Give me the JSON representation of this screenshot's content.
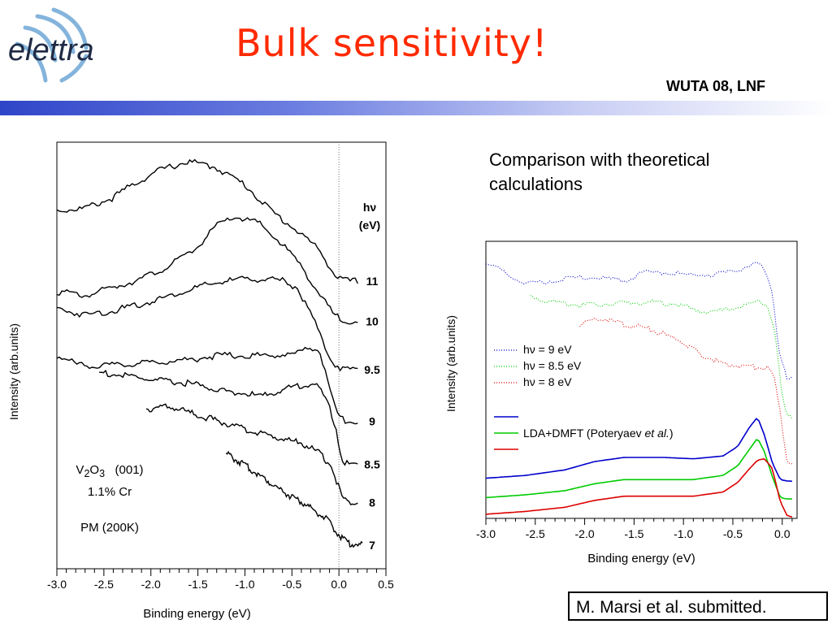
{
  "header": {
    "logo_text": "elettra",
    "title": "Bulk sensitivity!",
    "conference": "WUTA 08, LNF"
  },
  "subtitle": "Comparison with theoretical calculations",
  "citation": "M. Marsi et al. submitted.",
  "sample": {
    "formula_base": "V",
    "formula_sub1": "2",
    "formula_mid": "O",
    "formula_sub2": "3",
    "orientation": "(001)",
    "doping": "1.1% Cr",
    "phase": "PM  (200K)"
  },
  "colors": {
    "title": "#ff2a00",
    "band_start": "#2f45c8",
    "blue": "#0000cc",
    "green": "#00cc00",
    "red": "#dd0000"
  },
  "chart_data": [
    {
      "type": "line",
      "xlabel": "Binding energy (eV)",
      "ylabel": "Intensity (arb.units)",
      "xlim": [
        -3.0,
        0.5
      ],
      "x_ticks": [
        "-3.0",
        "-2.5",
        "-2.0",
        "-1.5",
        "-1.0",
        "-0.5",
        "0.0",
        "0.5"
      ],
      "vertical_reference": 0.0,
      "legend_title_line1": "hν",
      "legend_title_line2": "(eV)",
      "series": [
        {
          "name": "11",
          "start": -3.0,
          "points": [
            [
              -3.0,
              0.84
            ],
            [
              -2.7,
              0.845
            ],
            [
              -2.4,
              0.87
            ],
            [
              -2.2,
              0.9
            ],
            [
              -1.9,
              0.935
            ],
            [
              -1.6,
              0.955
            ],
            [
              -1.3,
              0.94
            ],
            [
              -1.0,
              0.9
            ],
            [
              -0.7,
              0.835
            ],
            [
              -0.4,
              0.785
            ],
            [
              -0.2,
              0.745
            ],
            [
              -0.05,
              0.69
            ],
            [
              0.05,
              0.675
            ],
            [
              0.2,
              0.674
            ]
          ]
        },
        {
          "name": "10",
          "start": -3.0,
          "points": [
            [
              -3.0,
              0.65
            ],
            [
              -2.7,
              0.64
            ],
            [
              -2.4,
              0.66
            ],
            [
              -2.1,
              0.68
            ],
            [
              -1.8,
              0.71
            ],
            [
              -1.5,
              0.755
            ],
            [
              -1.3,
              0.805
            ],
            [
              -1.1,
              0.825
            ],
            [
              -0.85,
              0.81
            ],
            [
              -0.6,
              0.76
            ],
            [
              -0.4,
              0.71
            ],
            [
              -0.2,
              0.64
            ],
            [
              -0.05,
              0.595
            ],
            [
              0.05,
              0.582
            ],
            [
              0.2,
              0.58
            ]
          ]
        },
        {
          "name": "9.5",
          "start": -3.0,
          "points": [
            [
              -3.0,
              0.61
            ],
            [
              -2.7,
              0.595
            ],
            [
              -2.4,
              0.605
            ],
            [
              -2.1,
              0.62
            ],
            [
              -1.8,
              0.64
            ],
            [
              -1.5,
              0.66
            ],
            [
              -1.2,
              0.675
            ],
            [
              -0.9,
              0.68
            ],
            [
              -0.6,
              0.675
            ],
            [
              -0.45,
              0.66
            ],
            [
              -0.3,
              0.6
            ],
            [
              -0.15,
              0.52
            ],
            [
              -0.05,
              0.48
            ],
            [
              0.05,
              0.468
            ],
            [
              0.2,
              0.467
            ]
          ]
        },
        {
          "name": "9",
          "start": -3.0,
          "points": [
            [
              -3.0,
              0.5
            ],
            [
              -2.8,
              0.48
            ],
            [
              -2.5,
              0.475
            ],
            [
              -2.2,
              0.48
            ],
            [
              -1.9,
              0.485
            ],
            [
              -1.6,
              0.49
            ],
            [
              -1.3,
              0.5
            ],
            [
              -1.0,
              0.5
            ],
            [
              -0.7,
              0.5
            ],
            [
              -0.45,
              0.505
            ],
            [
              -0.3,
              0.52
            ],
            [
              -0.2,
              0.51
            ],
            [
              -0.1,
              0.42
            ],
            [
              -0.02,
              0.36
            ],
            [
              0.05,
              0.348
            ],
            [
              0.2,
              0.346
            ]
          ]
        },
        {
          "name": "8.5",
          "start": -2.55,
          "points": [
            [
              -2.55,
              0.46
            ],
            [
              -2.2,
              0.45
            ],
            [
              -1.9,
              0.44
            ],
            [
              -1.6,
              0.435
            ],
            [
              -1.3,
              0.42
            ],
            [
              -1.0,
              0.41
            ],
            [
              -0.8,
              0.405
            ],
            [
              -0.6,
              0.42
            ],
            [
              -0.4,
              0.43
            ],
            [
              -0.25,
              0.435
            ],
            [
              -0.12,
              0.39
            ],
            [
              -0.03,
              0.33
            ],
            [
              0.03,
              0.255
            ],
            [
              0.1,
              0.245
            ],
            [
              0.2,
              0.245
            ]
          ]
        },
        {
          "name": "8",
          "start": -2.05,
          "points": [
            [
              -2.05,
              0.375
            ],
            [
              -1.8,
              0.38
            ],
            [
              -1.5,
              0.36
            ],
            [
              -1.2,
              0.34
            ],
            [
              -0.9,
              0.32
            ],
            [
              -0.6,
              0.305
            ],
            [
              -0.4,
              0.295
            ],
            [
              -0.2,
              0.27
            ],
            [
              -0.08,
              0.24
            ],
            [
              0.0,
              0.19
            ],
            [
              0.05,
              0.16
            ],
            [
              0.2,
              0.155
            ]
          ]
        },
        {
          "name": "7",
          "start": -1.2,
          "points": [
            [
              -1.2,
              0.27
            ],
            [
              -0.95,
              0.235
            ],
            [
              -0.75,
              0.205
            ],
            [
              -0.55,
              0.175
            ],
            [
              -0.35,
              0.15
            ],
            [
              -0.15,
              0.12
            ],
            [
              0.0,
              0.08
            ],
            [
              0.1,
              0.06
            ],
            [
              0.25,
              0.055
            ]
          ]
        }
      ]
    },
    {
      "type": "line",
      "xlabel": "Binding energy (eV)",
      "ylabel": "Intensity (arb.units)",
      "xlim": [
        -3.0,
        0.15
      ],
      "x_ticks": [
        "-3.0",
        "-2.5",
        "-2.0",
        "-1.5",
        "-1.0",
        "-0.5",
        "0.0"
      ],
      "legend": {
        "exp": [
          {
            "prefix": "hν",
            "rest": " = 9 eV",
            "color": "#0000cc"
          },
          {
            "prefix": "hν",
            "rest": " = 8.5 eV",
            "color": "#00cc00"
          },
          {
            "prefix": "hν",
            "rest": " = 8 eV",
            "color": "#dd0000"
          }
        ],
        "theory_label_main": "LDA+DMFT (Poteryaev ",
        "theory_label_italic": "et al.",
        "theory_label_end": ")"
      },
      "series": [
        {
          "style": "dotted",
          "color": "#0000cc",
          "start": -3.0,
          "points": [
            [
              -3.0,
              0.92
            ],
            [
              -2.8,
              0.885
            ],
            [
              -2.6,
              0.845
            ],
            [
              -2.4,
              0.855
            ],
            [
              -2.0,
              0.87
            ],
            [
              -1.6,
              0.86
            ],
            [
              -1.4,
              0.885
            ],
            [
              -1.2,
              0.89
            ],
            [
              -0.9,
              0.875
            ],
            [
              -0.6,
              0.885
            ],
            [
              -0.45,
              0.895
            ],
            [
              -0.3,
              0.92
            ],
            [
              -0.2,
              0.905
            ],
            [
              -0.1,
              0.82
            ],
            [
              -0.03,
              0.6
            ],
            [
              0.05,
              0.51
            ],
            [
              0.1,
              0.505
            ]
          ]
        },
        {
          "style": "dotted",
          "color": "#00cc00",
          "start": -2.55,
          "points": [
            [
              -2.55,
              0.8
            ],
            [
              -2.3,
              0.78
            ],
            [
              -2.0,
              0.77
            ],
            [
              -1.7,
              0.775
            ],
            [
              -1.4,
              0.78
            ],
            [
              -1.1,
              0.775
            ],
            [
              -0.8,
              0.745
            ],
            [
              -0.6,
              0.75
            ],
            [
              -0.4,
              0.765
            ],
            [
              -0.25,
              0.785
            ],
            [
              -0.15,
              0.77
            ],
            [
              -0.08,
              0.69
            ],
            [
              0.0,
              0.43
            ],
            [
              0.05,
              0.37
            ],
            [
              0.1,
              0.365
            ]
          ]
        },
        {
          "style": "dotted",
          "color": "#dd0000",
          "start": -2.05,
          "points": [
            [
              -2.05,
              0.7
            ],
            [
              -1.85,
              0.725
            ],
            [
              -1.6,
              0.7
            ],
            [
              -1.4,
              0.69
            ],
            [
              -1.2,
              0.665
            ],
            [
              -1.0,
              0.635
            ],
            [
              -0.8,
              0.585
            ],
            [
              -0.6,
              0.56
            ],
            [
              -0.4,
              0.55
            ],
            [
              -0.25,
              0.545
            ],
            [
              -0.15,
              0.545
            ],
            [
              -0.08,
              0.5
            ],
            [
              -0.02,
              0.38
            ],
            [
              0.05,
              0.205
            ],
            [
              0.1,
              0.2
            ]
          ]
        },
        {
          "style": "solid",
          "color": "#0000cc",
          "start": -3.0,
          "points": [
            [
              -3.0,
              0.145
            ],
            [
              -2.6,
              0.155
            ],
            [
              -2.2,
              0.175
            ],
            [
              -1.9,
              0.205
            ],
            [
              -1.6,
              0.22
            ],
            [
              -1.2,
              0.22
            ],
            [
              -0.9,
              0.215
            ],
            [
              -0.6,
              0.225
            ],
            [
              -0.45,
              0.26
            ],
            [
              -0.33,
              0.33
            ],
            [
              -0.25,
              0.365
            ],
            [
              -0.18,
              0.3
            ],
            [
              -0.1,
              0.2
            ],
            [
              -0.02,
              0.14
            ],
            [
              0.05,
              0.135
            ],
            [
              0.1,
              0.134
            ]
          ]
        },
        {
          "style": "solid",
          "color": "#00cc00",
          "start": -3.0,
          "points": [
            [
              -3.0,
              0.075
            ],
            [
              -2.6,
              0.085
            ],
            [
              -2.2,
              0.1
            ],
            [
              -1.9,
              0.125
            ],
            [
              -1.6,
              0.14
            ],
            [
              -1.2,
              0.14
            ],
            [
              -0.9,
              0.14
            ],
            [
              -0.6,
              0.155
            ],
            [
              -0.45,
              0.19
            ],
            [
              -0.33,
              0.25
            ],
            [
              -0.25,
              0.29
            ],
            [
              -0.18,
              0.24
            ],
            [
              -0.1,
              0.15
            ],
            [
              -0.02,
              0.075
            ],
            [
              0.05,
              0.07
            ],
            [
              0.1,
              0.07
            ]
          ]
        },
        {
          "style": "solid",
          "color": "#dd0000",
          "start": -3.0,
          "points": [
            [
              -3.0,
              0.015
            ],
            [
              -2.6,
              0.025
            ],
            [
              -2.2,
              0.04
            ],
            [
              -1.9,
              0.065
            ],
            [
              -1.6,
              0.08
            ],
            [
              -1.2,
              0.08
            ],
            [
              -0.9,
              0.08
            ],
            [
              -0.6,
              0.095
            ],
            [
              -0.45,
              0.13
            ],
            [
              -0.33,
              0.18
            ],
            [
              -0.25,
              0.21
            ],
            [
              -0.18,
              0.215
            ],
            [
              -0.1,
              0.18
            ],
            [
              -0.02,
              0.06
            ],
            [
              0.05,
              0.01
            ],
            [
              0.1,
              0.005
            ]
          ]
        }
      ]
    }
  ]
}
